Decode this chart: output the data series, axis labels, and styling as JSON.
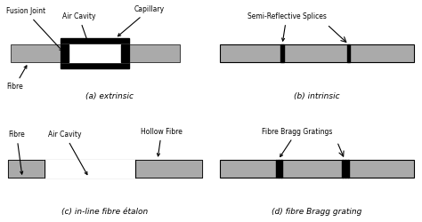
{
  "bg_color": "#ffffff",
  "gray_color": "#aaaaaa",
  "black_color": "#000000",
  "white_color": "#ffffff",
  "fig_width": 4.74,
  "fig_height": 2.5,
  "dpi": 100,
  "labels": {
    "a_title": "(a) extrinsic",
    "b_title": "(b) intrinsic",
    "c_title": "(c) in-line fibre étalon",
    "d_title": "(d) fibre Bragg grating",
    "fusion_joint": "Fusion Joint",
    "air_cavity_a": "Air Cavity",
    "capillary": "Capillary",
    "fibre_a": "Fibre",
    "semi_reflective": "Semi-Reflective Splices",
    "fibre_c": "Fibre",
    "air_cavity_c": "Air Cavity",
    "hollow_fibre": "Hollow Fibre",
    "fibre_bragg": "Fibre Bragg Gratings"
  }
}
